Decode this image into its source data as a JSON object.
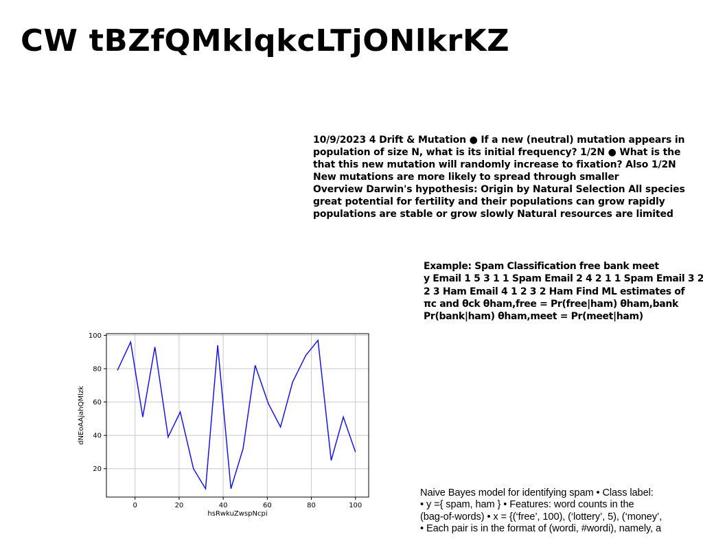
{
  "page": {
    "title": "CW  tBZfQMklqkcLTjONlkrKZ"
  },
  "drift_block": {
    "lines": [
      "10/9/2023 4 Drift & Mutation ● If a new (neutral) mutation appears in",
      "population of size N, what is its initial frequency? 1/2N ● What is the",
      "that this new mutation will randomly increase to fixation? Also 1/2N",
      "New mutations are more likely to spread through smaller",
      "Overview Darwin's hypothesis: Origin by Natural Selection All species",
      "great potential for fertility and their populations can grow rapidly",
      "populations are stable or grow slowly Natural resources are limited"
    ]
  },
  "spam_block": {
    "lines": [
      "Example: Spam Classification free bank meet",
      "y Email 1 5 3 1 1 Spam Email 2 4 2 1 1 Spam Email 3 2",
      "2 3 Ham Email 4 1 2 3 2 Ham Find ML estimates of",
      "πc and θck θham,free = Pr(free|ham) θham,bank",
      "Pr(bank|ham) θham,meet = Pr(meet|ham)"
    ]
  },
  "naive_block": {
    "lines": [
      "Naive Bayes model for identifying spam • Class label:",
      "• y ={ spam, ham } • Features: word counts in the",
      "(bag-of-words) • x = {(‘free’, 100), (‘lottery’, 5), (‘money’,",
      "• Each pair is in the format of (wordi, #wordi), namely, a"
    ]
  },
  "chart_data": {
    "type": "line",
    "title": "",
    "xlabel": "hsRwkuZwspNcpi",
    "ylabel": "dNEoAAjahQMlzk",
    "x": [
      -8,
      -2,
      3.5,
      9,
      15,
      20.5,
      26.5,
      32,
      37.5,
      43.5,
      49,
      54.5,
      60.5,
      66,
      71.5,
      77.5,
      83,
      89,
      94.5,
      100
    ],
    "series": [
      {
        "name": "series-1",
        "values": [
          79,
          96,
          51,
          93,
          39,
          54,
          20,
          8,
          94,
          8,
          32,
          82,
          59,
          45,
          72,
          88,
          97,
          25,
          51,
          30
        ]
      }
    ],
    "xlim": [
      -13,
      106
    ],
    "ylim": [
      3,
      101
    ],
    "xticks": [
      0,
      20,
      40,
      60,
      80,
      100
    ],
    "yticks": [
      20,
      40,
      60,
      80,
      100
    ],
    "grid": true,
    "line_color": "#1414e6"
  }
}
